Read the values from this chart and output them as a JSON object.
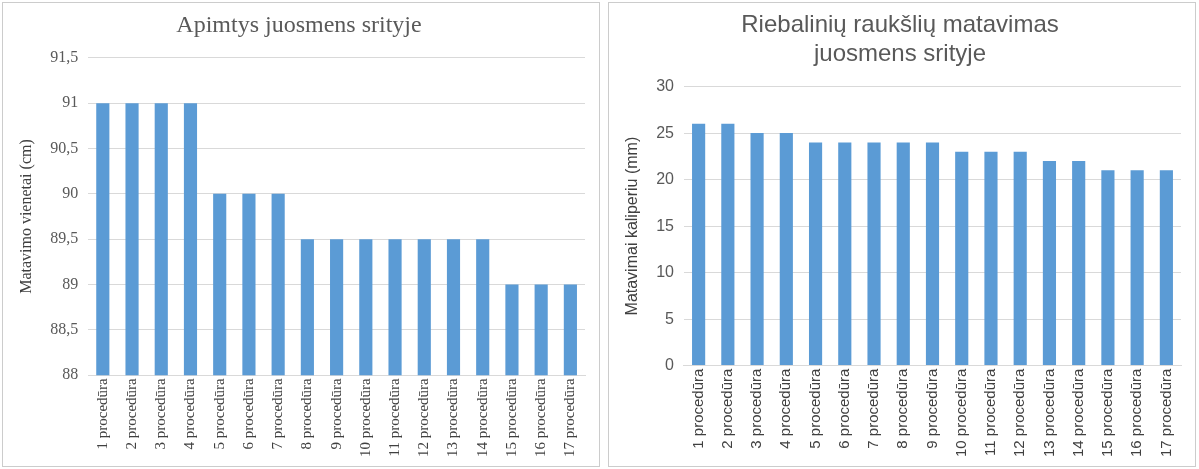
{
  "chart_data": [
    {
      "type": "bar",
      "title": "Apimtys juosmens srityje",
      "ylabel": "Matavimo vienetai (cm)",
      "categories": [
        "1 procedūra",
        "2 procedūra",
        "3 procedūra",
        "4 procedūra",
        "5 procedūra",
        "6 procedūra",
        "7 procedūra",
        "8 procedūra",
        "9 procedūra",
        "10 procedūra",
        "11 procedūra",
        "12 procedūra",
        "13 procedūra",
        "14 procedūra",
        "15 procedūra",
        "16 procedūra",
        "17 procedūra"
      ],
      "values": [
        91,
        91,
        91,
        91,
        90,
        90,
        90,
        89.5,
        89.5,
        89.5,
        89.5,
        89.5,
        89.5,
        89.5,
        89,
        89,
        89
      ],
      "color": "#5b9bd5",
      "ylim": [
        88,
        91.5
      ],
      "yticks": [
        {
          "value": 88,
          "label": "88"
        },
        {
          "value": 88.5,
          "label": "88,5"
        },
        {
          "value": 89,
          "label": "89"
        },
        {
          "value": 89.5,
          "label": "89,5"
        },
        {
          "value": 90,
          "label": "90"
        },
        {
          "value": 90.5,
          "label": "90,5"
        },
        {
          "value": 91,
          "label": "91"
        },
        {
          "value": 91.5,
          "label": "91,5"
        }
      ],
      "grid": "y"
    },
    {
      "type": "bar",
      "title": "Riebalinių raukšlių matavimas juosmens srityje",
      "ylabel": "Matavimai kaliperiu (mm)",
      "categories": [
        "1 procedūra",
        "2 procedūra",
        "3 procedūra",
        "4 procedūra",
        "5 procedūra",
        "6 procedūra",
        "7 procedūra",
        "8 procedūra",
        "9 procedūra",
        "10 procedūra",
        "11 procedūra",
        "12 procedūra",
        "13 procedūra",
        "14 procedūra",
        "15 procedūra",
        "16 procedūra",
        "17 procedūra"
      ],
      "values": [
        26,
        26,
        25,
        25,
        24,
        24,
        24,
        24,
        24,
        23,
        23,
        23,
        22,
        22,
        21,
        21,
        21
      ],
      "color": "#5b9bd5",
      "ylim": [
        0,
        30
      ],
      "yticks": [
        0,
        5,
        10,
        15,
        20,
        25,
        30
      ],
      "grid": "y"
    }
  ]
}
